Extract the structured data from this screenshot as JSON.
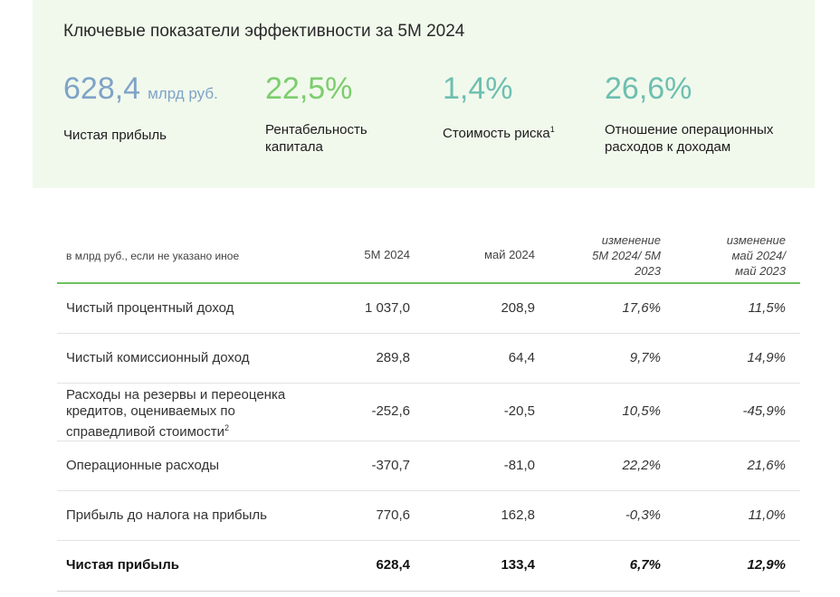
{
  "kpi_panel": {
    "title": "Ключевые показатели эффективности за 5М 2024",
    "items": [
      {
        "value": "628,4",
        "unit": "млрд руб.",
        "label": "Чистая прибыль",
        "color": "#7fa3c8"
      },
      {
        "value": "22,5%",
        "label": "Рентабельность капитала",
        "color": "#7ccd6e"
      },
      {
        "value": "1,4%",
        "label": "Стоимость риска",
        "footnote": "1",
        "color": "#6dbfb1"
      },
      {
        "value": "26,6%",
        "label": "Отношение операционных расходов к доходам",
        "color": "#6dbfb1"
      }
    ]
  },
  "table": {
    "header": {
      "units_note": "в млрд руб., если не указано иное",
      "col1": "5М 2024",
      "col2": "май 2024",
      "col3": "изменение 5М 2024/ 5М 2023",
      "col4": "изменение май 2024/ май 2023"
    },
    "rows": [
      {
        "label": "Чистый процентный доход",
        "v1": "1 037,0",
        "v2": "208,9",
        "v3": "17,6%",
        "v4": "11,5%"
      },
      {
        "label": "Чистый комиссионный доход",
        "v1": "289,8",
        "v2": "64,4",
        "v3": "9,7%",
        "v4": "14,9%"
      },
      {
        "label": "Расходы на резервы и переоценка кредитов, оцениваемых по справедливой стоимости",
        "footnote": "2",
        "v1": "-252,6",
        "v2": "-20,5",
        "v3": "10,5%",
        "v4": "-45,9%"
      },
      {
        "label": "Операционные расходы",
        "v1": "-370,7",
        "v2": "-81,0",
        "v3": "22,2%",
        "v4": "21,6%"
      },
      {
        "label": "Прибыль до налога на прибыль",
        "v1": "770,6",
        "v2": "162,8",
        "v3": "-0,3%",
        "v4": "11,0%"
      },
      {
        "label": "Чистая прибыль",
        "v1": "628,4",
        "v2": "133,4",
        "v3": "6,7%",
        "v4": "12,9%"
      }
    ]
  },
  "colors": {
    "panel_background": "#f1f9ec",
    "header_rule": "#6cc35e"
  }
}
